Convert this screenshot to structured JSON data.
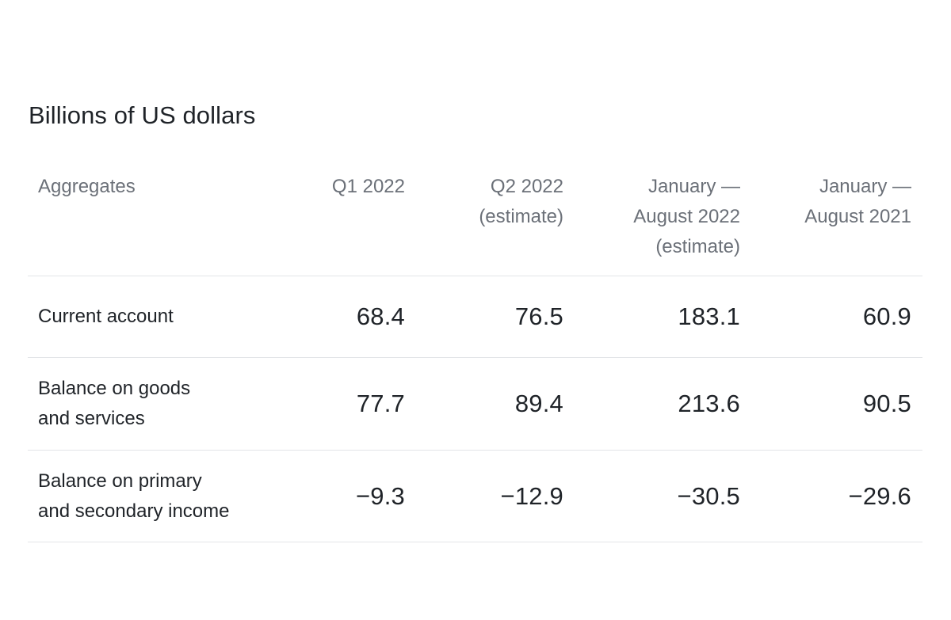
{
  "caption": "Billions of US dollars",
  "table": {
    "headers": {
      "aggregates": "Aggregates",
      "q1_2022": "Q1 2022",
      "q2_2022_line1": "Q2 2022",
      "q2_2022_line2": "(estimate)",
      "jan_aug_2022_line1": "January —",
      "jan_aug_2022_line2": "August 2022",
      "jan_aug_2022_line3": "(estimate)",
      "jan_aug_2021_line1": "January —",
      "jan_aug_2021_line2": "August 2021"
    },
    "rows": [
      {
        "label_line1": "Current account",
        "q1_2022": "68.4",
        "q2_2022": "76.5",
        "jan_aug_2022": "183.1",
        "jan_aug_2021": "60.9"
      },
      {
        "label_line1": "Balance on goods",
        "label_line2": "and services",
        "q1_2022": "77.7",
        "q2_2022": "89.4",
        "jan_aug_2022": "213.6",
        "jan_aug_2021": "90.5"
      },
      {
        "label_line1": "Balance on primary",
        "label_line2": "and secondary income",
        "q1_2022": "−9.3",
        "q2_2022": "−12.9",
        "jan_aug_2022": "−30.5",
        "jan_aug_2021": "−29.6"
      }
    ]
  }
}
